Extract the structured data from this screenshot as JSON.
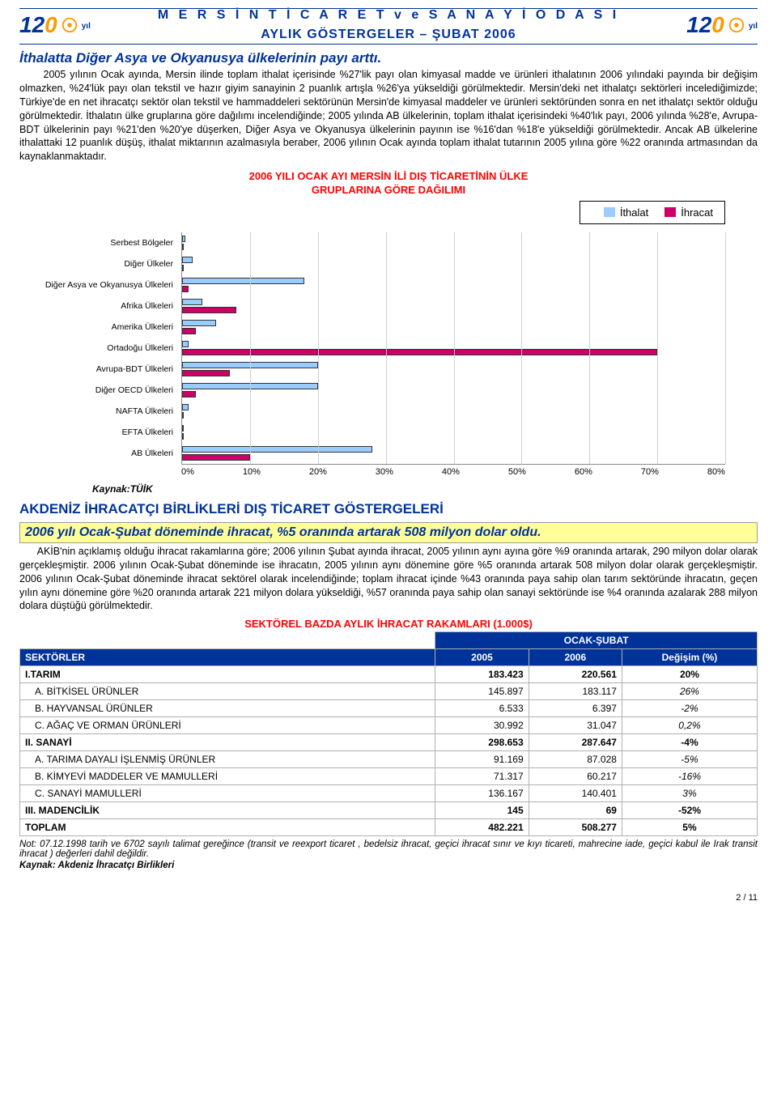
{
  "header": {
    "org_line": "M E R S İ N   T İ C A R E T   v e   S A N A Y İ   O D A S I",
    "subtitle": "AYLIK GÖSTERGELER – ŞUBAT 2006",
    "logo_number": "12",
    "logo_zero": "0",
    "logo_yil": "yıl"
  },
  "section1": {
    "heading": "İthalatta Diğer Asya ve Okyanusya ülkelerinin payı arttı.",
    "paragraph": "2005 yılının Ocak ayında, Mersin ilinde toplam ithalat içerisinde %27'lik payı olan kimyasal madde ve ürünleri ithalatının 2006 yılındaki payında bir değişim olmazken, %24'lük payı olan tekstil ve hazır giyim sanayinin 2 puanlık artışla %26'ya yükseldiği görülmektedir. Mersin'deki net ithalatçı sektörleri incelediğimizde; Türkiye'de en net ihracatçı sektör olan tekstil ve hammaddeleri sektörünün Mersin'de kimyasal maddeler ve ürünleri sektöründen sonra en net ithalatçı sektör olduğu görülmektedir. İthalatın ülke gruplarına göre dağılımı incelendiğinde; 2005 yılında AB ülkelerinin, toplam ithalat içerisindeki %40'lık payı, 2006 yılında %28'e, Avrupa-BDT ülkelerinin payı %21'den %20'ye düşerken, Diğer Asya ve Okyanusya ülkelerinin payının ise %16'dan %18'e yükseldiği görülmektedir. Ancak AB ülkelerine ithalattaki 12 puanlık düşüş, ithalat miktarının azalmasıyla beraber, 2006 yılının Ocak ayında toplam ithalat tutarının 2005 yılına göre %22 oranında artmasından da kaynaklanmaktadır."
  },
  "chart": {
    "title_line1": "2006 YILI OCAK AYI MERSİN İLİ DIŞ TİCARETİNİN ÜLKE",
    "title_line2": "GRUPLARINA GÖRE DAĞILIMI",
    "title_color": "#ff0000",
    "legend_ithalat": "İthalat",
    "legend_ihracat": "İhracat",
    "color_ithalat": "#99ccff",
    "color_ihracat": "#cc0066",
    "categories": [
      {
        "label": "Serbest Bölgeler",
        "ithalat": 0.5,
        "ihracat": 0
      },
      {
        "label": "Diğer Ülkeler",
        "ithalat": 1.5,
        "ihracat": 0
      },
      {
        "label": "Diğer Asya ve Okyanusya Ülkeleri",
        "ithalat": 18,
        "ihracat": 1
      },
      {
        "label": "Afrika Ülkeleri",
        "ithalat": 3,
        "ihracat": 8
      },
      {
        "label": "Amerika Ülkeleri",
        "ithalat": 5,
        "ihracat": 2
      },
      {
        "label": "Ortadoğu Ülkeleri",
        "ithalat": 1,
        "ihracat": 70
      },
      {
        "label": "Avrupa-BDT Ülkeleri",
        "ithalat": 20,
        "ihracat": 7
      },
      {
        "label": "Diğer OECD Ülkeleri",
        "ithalat": 20,
        "ihracat": 2
      },
      {
        "label": "NAFTA Ülkeleri",
        "ithalat": 1,
        "ihracat": 0
      },
      {
        "label": "EFTA Ülkeleri",
        "ithalat": 0,
        "ihracat": 0
      },
      {
        "label": "AB Ülkeleri",
        "ithalat": 28,
        "ihracat": 10
      }
    ],
    "xticks": [
      "0%",
      "10%",
      "20%",
      "30%",
      "40%",
      "50%",
      "60%",
      "70%",
      "80%"
    ],
    "xmax": 80,
    "source": "Kaynak:TÜİK"
  },
  "section2": {
    "big_heading": "AKDENİZ İHRACATÇI BİRLİKLERİ DIŞ TİCARET GÖSTERGELERİ",
    "yellow_heading": "2006 yılı Ocak-Şubat döneminde ihracat, %5 oranında artarak 508 milyon dolar oldu.",
    "paragraph": "AKİB'nin açıklamış olduğu ihracat rakamlarına göre; 2006 yılının Şubat ayında ihracat, 2005 yılının aynı ayına göre %9 oranında artarak, 290 milyon dolar olarak gerçekleşmiştir. 2006 yılının Ocak-Şubat döneminde ise ihracatın, 2005 yılının aynı dönemine göre %5 oranında artarak 508 milyon dolar olarak gerçekleşmiştir. 2006 yılının Ocak-Şubat döneminde ihracat sektörel olarak incelendiğinde; toplam ihracat içinde %43 oranında paya sahip olan tarım sektöründe ihracatın, geçen yılın aynı dönemine göre %20 oranında artarak 221 milyon dolara yükseldiği, %57 oranında paya sahip olan sanayi sektöründe ise %4 oranında azalarak 288 milyon dolara düştüğü görülmektedir."
  },
  "table": {
    "title": "SEKTÖREL BAZDA AYLIK İHRACAT RAKAMLARI (1.000$)",
    "title_color": "#ff0000",
    "header_bg": "#003399",
    "group_header": "OCAK-ŞUBAT",
    "col_sektorler": "SEKTÖRLER",
    "col_2005": "2005",
    "col_2006": "2006",
    "col_degisim": "Değişim (%)",
    "rows": [
      {
        "label": "I.TARIM",
        "v2005": "183.423",
        "v2006": "220.561",
        "chg": "20%",
        "bold": true
      },
      {
        "label": "A. BİTKİSEL ÜRÜNLER",
        "v2005": "145.897",
        "v2006": "183.117",
        "chg": "26%",
        "indent": true,
        "ital_chg": true
      },
      {
        "label": "B. HAYVANSAL ÜRÜNLER",
        "v2005": "6.533",
        "v2006": "6.397",
        "chg": "-2%",
        "indent": true,
        "ital_chg": true
      },
      {
        "label": "C. AĞAÇ VE ORMAN ÜRÜNLERİ",
        "v2005": "30.992",
        "v2006": "31.047",
        "chg": "0,2%",
        "indent": true,
        "ital_chg": true
      },
      {
        "label": "II. SANAYİ",
        "v2005": "298.653",
        "v2006": "287.647",
        "chg": "-4%",
        "bold": true
      },
      {
        "label": "A. TARIMA DAYALI İŞLENMİŞ ÜRÜNLER",
        "v2005": "91.169",
        "v2006": "87.028",
        "chg": "-5%",
        "indent": true,
        "ital_chg": true
      },
      {
        "label": "B. KİMYEVİ MADDELER VE MAMULLERİ",
        "v2005": "71.317",
        "v2006": "60.217",
        "chg": "-16%",
        "indent": true,
        "ital_chg": true
      },
      {
        "label": "C. SANAYİ MAMULLERİ",
        "v2005": "136.167",
        "v2006": "140.401",
        "chg": "3%",
        "indent": true,
        "ital_chg": true
      },
      {
        "label": "III. MADENCİLİK",
        "v2005": "145",
        "v2006": "69",
        "chg": "-52%",
        "bold": true
      },
      {
        "label": "TOPLAM",
        "v2005": "482.221",
        "v2006": "508.277",
        "chg": "5%",
        "bold": true
      }
    ],
    "footnote": "Not: 07.12.1998 tarih ve 6702 sayılı talimat gereğince (transit ve reexport ticaret , bedelsiz ihracat, geçici ihracat sınır ve kıyı ticareti, mahrecine iade, geçici kabul ile Irak transit ihracat ) değerleri dahil değildir.",
    "source": "Kaynak: Akdeniz İhracatçı Birlikleri"
  },
  "page_number": "2 / 11"
}
